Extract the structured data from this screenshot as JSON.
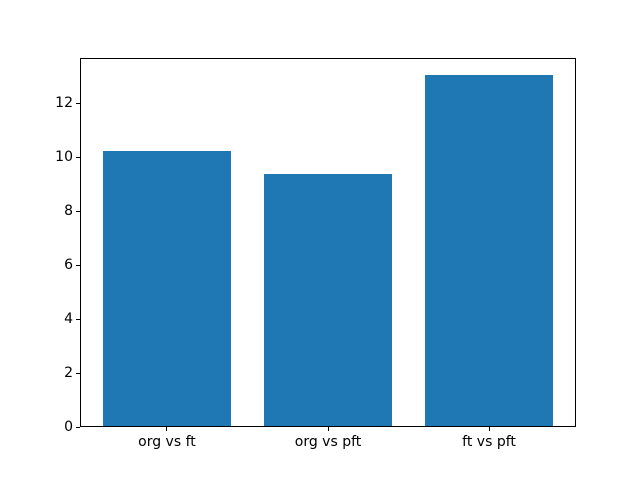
{
  "chart_data": {
    "type": "bar",
    "title": "",
    "xlabel": "",
    "ylabel": "",
    "categories": [
      "org vs ft",
      "org vs pft",
      "ft vs pft"
    ],
    "values": [
      10.2,
      9.35,
      13.05
    ],
    "yticks": [
      0,
      2,
      4,
      6,
      8,
      10,
      12
    ],
    "xlim": [
      -0.54,
      2.54
    ],
    "ylim": [
      0,
      13.7
    ],
    "bar_width": 0.8,
    "bar_color": "#1f77b4",
    "spine_color": "#000000",
    "background_color": "#ffffff",
    "grid": false,
    "legend": null
  }
}
